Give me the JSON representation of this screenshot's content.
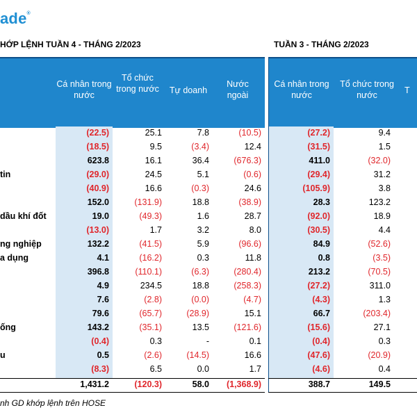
{
  "brand": {
    "logo_text": "ade",
    "registered_mark": "®",
    "color": "#1f8fd3"
  },
  "titles": {
    "left": "HỚP LỆNH TUẦN 4 - THÁNG 2/2023",
    "right": "TUẦN 3 - THÁNG 2/2023"
  },
  "headers": {
    "col1": "Cá nhân trong nước",
    "col2": "Tổ chức trong nước",
    "col3": "Tự doanh",
    "col4": "Nước ngoài",
    "col5": "Cá nhân trong nước",
    "col6": "Tổ chức trong nước",
    "col7_partial": "T"
  },
  "colors": {
    "header_blue": "#1f86cc",
    "shade": "#d8e8f5",
    "negative": "#e0262b"
  },
  "rows": [
    {
      "label": "",
      "v": [
        "(22.5)",
        "25.1",
        "7.8",
        "(10.5)",
        "(27.2)",
        "9.4"
      ]
    },
    {
      "label": "",
      "v": [
        "(18.5)",
        "9.5",
        "(3.4)",
        "12.4",
        "(31.5)",
        "1.5"
      ]
    },
    {
      "label": "",
      "v": [
        "623.8",
        "16.1",
        "36.4",
        "(676.3)",
        "411.0",
        "(32.0)"
      ]
    },
    {
      "label": "tin",
      "v": [
        "(29.0)",
        "24.5",
        "5.1",
        "(0.6)",
        "(29.4)",
        "31.2"
      ]
    },
    {
      "label": "",
      "v": [
        "(40.9)",
        "16.6",
        "(0.3)",
        "24.6",
        "(105.9)",
        "3.8"
      ]
    },
    {
      "label": "",
      "v": [
        "152.0",
        "(131.9)",
        "18.8",
        "(38.9)",
        "28.3",
        "123.2"
      ]
    },
    {
      "label": "dầu khí đốt",
      "v": [
        "19.0",
        "(49.3)",
        "1.6",
        "28.7",
        "(92.0)",
        "18.9"
      ]
    },
    {
      "label": "",
      "v": [
        "(13.0)",
        "1.7",
        "3.2",
        "8.0",
        "(30.5)",
        "4.4"
      ]
    },
    {
      "label": "ng nghiệp",
      "v": [
        "132.2",
        "(41.5)",
        "5.9",
        "(96.6)",
        "84.9",
        "(52.6)"
      ]
    },
    {
      "label": "a dụng",
      "v": [
        "4.1",
        "(16.2)",
        "0.3",
        "11.8",
        "0.8",
        "(3.5)"
      ]
    },
    {
      "label": "",
      "v": [
        "396.8",
        "(110.1)",
        "(6.3)",
        "(280.4)",
        "213.2",
        "(70.5)"
      ]
    },
    {
      "label": "",
      "v": [
        "4.9",
        "234.5",
        "18.8",
        "(258.3)",
        "(27.2)",
        "311.0"
      ]
    },
    {
      "label": "",
      "v": [
        "7.6",
        "(2.8)",
        "(0.0)",
        "(4.7)",
        "(4.3)",
        "1.3"
      ]
    },
    {
      "label": "",
      "v": [
        "79.6",
        "(65.7)",
        "(28.9)",
        "15.1",
        "66.7",
        "(203.4)"
      ]
    },
    {
      "label": "ống",
      "v": [
        "143.2",
        "(35.1)",
        "13.5",
        "(121.6)",
        "(15.6)",
        "27.1"
      ]
    },
    {
      "label": "",
      "v": [
        "(0.4)",
        "0.3",
        "-",
        "0.1",
        "(0.4)",
        "0.3"
      ]
    },
    {
      "label": "u",
      "v": [
        "0.5",
        "(2.6)",
        "(14.5)",
        "16.6",
        "(47.6)",
        "(20.9)"
      ]
    },
    {
      "label": "",
      "v": [
        "(8.3)",
        "6.5",
        "0.0",
        "1.7",
        "(4.6)",
        "0.4"
      ]
    }
  ],
  "total": {
    "v": [
      "1,431.2",
      "(120.3)",
      "58.0",
      "(1,368.9)",
      "388.7",
      "149.5"
    ]
  },
  "footer": "nh GD khớp lệnh trên HOSE"
}
